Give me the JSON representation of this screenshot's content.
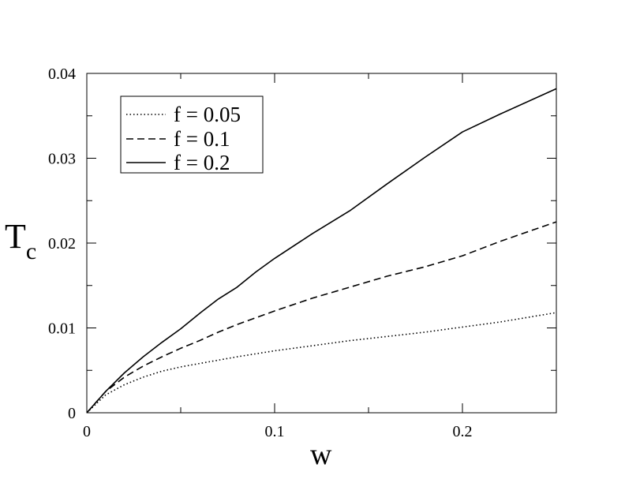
{
  "chart_data": {
    "type": "line",
    "xlabel": "w",
    "ylabel": "T",
    "ylabel_subscript": "c",
    "xlim": [
      0,
      0.25
    ],
    "ylim": [
      0,
      0.04
    ],
    "x_ticks": [
      0,
      0.1,
      0.2
    ],
    "x_tick_labels": [
      "0",
      "0.1",
      "0.2"
    ],
    "x_minor_ticks": [
      0.05,
      0.15,
      0.25
    ],
    "y_ticks": [
      0,
      0.01,
      0.02,
      0.03,
      0.04
    ],
    "y_tick_labels": [
      "0",
      "0.01",
      "0.02",
      "0.03",
      "0.04"
    ],
    "y_minor_ticks": [
      0.005,
      0.015,
      0.025,
      0.035
    ],
    "grid": false,
    "legend_position": "top-left",
    "series": [
      {
        "name": "f = 0.05",
        "style": "dotted",
        "color": "#000000",
        "x": [
          0,
          0.01,
          0.02,
          0.03,
          0.04,
          0.05,
          0.06,
          0.08,
          0.1,
          0.12,
          0.14,
          0.16,
          0.18,
          0.2,
          0.22,
          0.25
        ],
        "y": [
          0,
          0.0021,
          0.0033,
          0.0042,
          0.0049,
          0.0054,
          0.0058,
          0.0066,
          0.0073,
          0.0079,
          0.0085,
          0.009,
          0.0095,
          0.0101,
          0.0107,
          0.0118
        ]
      },
      {
        "name": "f = 0.1",
        "style": "dashed",
        "color": "#000000",
        "x": [
          0,
          0.01,
          0.02,
          0.03,
          0.04,
          0.05,
          0.06,
          0.07,
          0.08,
          0.09,
          0.1,
          0.12,
          0.14,
          0.16,
          0.18,
          0.2,
          0.22,
          0.25
        ],
        "y": [
          0,
          0.0025,
          0.0042,
          0.0055,
          0.0066,
          0.0076,
          0.0085,
          0.0095,
          0.0104,
          0.0112,
          0.012,
          0.0135,
          0.0148,
          0.0161,
          0.0172,
          0.0185,
          0.0202,
          0.0225
        ]
      },
      {
        "name": "f = 0.2",
        "style": "solid",
        "color": "#000000",
        "x": [
          0,
          0.01,
          0.02,
          0.03,
          0.04,
          0.05,
          0.06,
          0.07,
          0.08,
          0.09,
          0.1,
          0.12,
          0.14,
          0.16,
          0.18,
          0.2,
          0.22,
          0.25
        ],
        "y": [
          0,
          0.0025,
          0.0047,
          0.0066,
          0.0083,
          0.0099,
          0.0117,
          0.0134,
          0.0148,
          0.0166,
          0.0182,
          0.0211,
          0.0238,
          0.027,
          0.0301,
          0.0331,
          0.0352,
          0.0382
        ]
      }
    ]
  }
}
